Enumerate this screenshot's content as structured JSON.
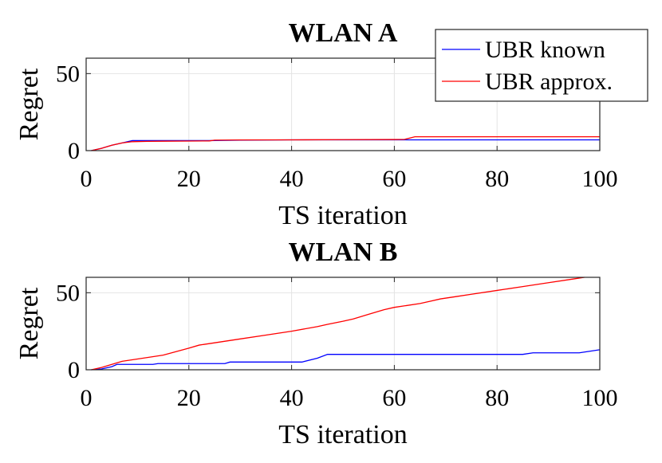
{
  "chart_data": [
    {
      "type": "line",
      "title": "WLAN A",
      "xlabel": "TS iteration",
      "ylabel": "Regret",
      "xlim": [
        0,
        100
      ],
      "ylim": [
        0,
        60
      ],
      "xticks": [
        "0",
        "20",
        "40",
        "60",
        "80",
        "100"
      ],
      "yticks": [
        "0",
        "50"
      ],
      "grid": true,
      "legend": "top-right",
      "series": [
        {
          "name": "UBR known",
          "color": "#0000ff",
          "x": [
            1,
            3,
            5,
            7,
            9,
            12,
            15,
            20,
            24,
            30,
            40,
            50,
            60,
            64,
            70,
            80,
            90,
            100
          ],
          "y": [
            0,
            1.5,
            3.5,
            5,
            6.5,
            6.5,
            6.5,
            6.5,
            6.5,
            6.8,
            7,
            7,
            7,
            7,
            7,
            7,
            7,
            7
          ]
        },
        {
          "name": "UBR approx.",
          "color": "#ff0000",
          "x": [
            1,
            3,
            5,
            7,
            9,
            12,
            15,
            20,
            24,
            25,
            30,
            40,
            50,
            60,
            62,
            64,
            70,
            80,
            90,
            100
          ],
          "y": [
            0,
            1.5,
            3.5,
            5,
            5.8,
            6,
            6.1,
            6.2,
            6.3,
            6.8,
            6.9,
            7,
            7.1,
            7.2,
            7.3,
            9,
            9,
            9,
            9,
            9
          ]
        }
      ]
    },
    {
      "type": "line",
      "title": "WLAN B",
      "xlabel": "TS iteration",
      "ylabel": "Regret",
      "xlim": [
        0,
        100
      ],
      "ylim": [
        0,
        60
      ],
      "xticks": [
        "0",
        "20",
        "40",
        "60",
        "80",
        "100"
      ],
      "yticks": [
        "0",
        "50"
      ],
      "grid": true,
      "series": [
        {
          "name": "UBR known",
          "color": "#0000ff",
          "x": [
            1,
            3,
            5,
            6,
            8,
            10,
            13,
            14,
            20,
            25,
            27,
            28,
            35,
            40,
            42,
            45,
            47,
            50,
            60,
            70,
            80,
            85,
            87,
            90,
            96,
            100
          ],
          "y": [
            0,
            0.5,
            2,
            3.5,
            3.5,
            3.5,
            3.5,
            4,
            4,
            4,
            4,
            5,
            5,
            5,
            5,
            7.5,
            10,
            10,
            10,
            10,
            10,
            10,
            11,
            11,
            11,
            13
          ]
        },
        {
          "name": "UBR approx.",
          "color": "#ff0000",
          "x": [
            1,
            3,
            5,
            7,
            10,
            15,
            20,
            22,
            25,
            30,
            35,
            40,
            45,
            47,
            50,
            52,
            55,
            58,
            60,
            65,
            67,
            69,
            72,
            75,
            80,
            85,
            90,
            95,
            97
          ],
          "y": [
            0,
            1.5,
            3.5,
            5.5,
            7,
            9.5,
            14,
            16,
            17.5,
            20,
            22.5,
            25,
            28,
            29.5,
            31.5,
            33,
            36,
            39,
            40.5,
            43,
            44.5,
            46,
            47.5,
            49,
            51.5,
            54,
            56.5,
            59,
            60
          ]
        }
      ]
    }
  ]
}
